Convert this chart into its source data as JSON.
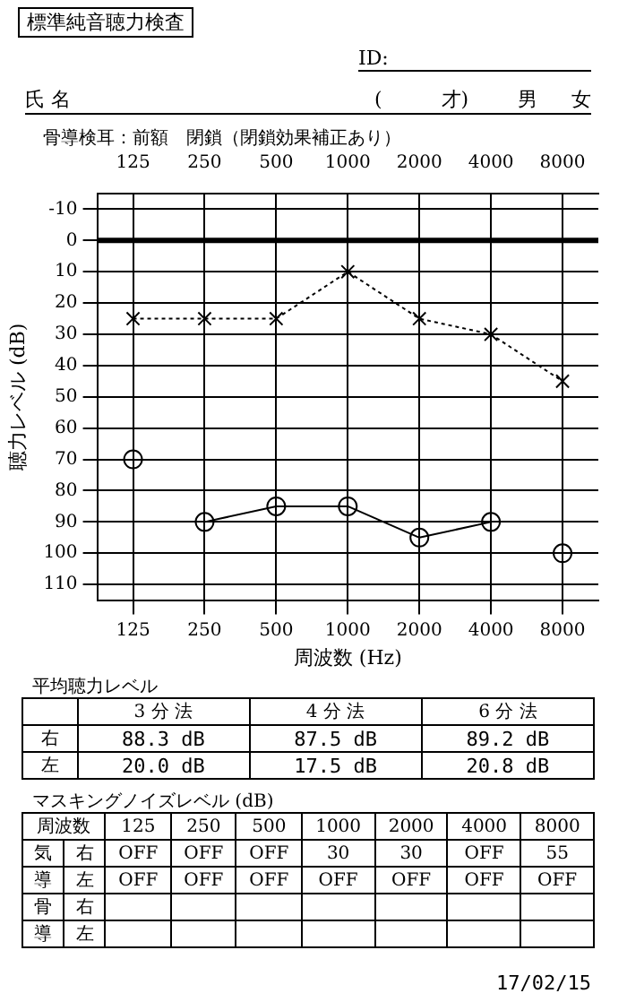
{
  "chart_data": {
    "type": "line",
    "title": "標準純音聴力検査",
    "xlabel": "周波数 (Hz)",
    "ylabel": "聴力レベル (dB)",
    "categories": [
      "125",
      "250",
      "500",
      "1000",
      "2000",
      "4000",
      "8000"
    ],
    "ylim": [
      115,
      -15
    ],
    "yticks": [
      -10,
      0,
      10,
      20,
      30,
      40,
      50,
      60,
      70,
      80,
      90,
      100,
      110
    ],
    "grid": true,
    "ref_lines": [
      {
        "axis": "y",
        "value": 0,
        "color": "#000000"
      }
    ],
    "series": [
      {
        "color": "#000000",
        "marker": "circle",
        "line_style": "solid",
        "values": [
          null,
          90,
          85,
          85,
          95,
          90,
          null
        ]
      },
      {
        "type": "scatter",
        "color": "#000000",
        "marker": "circle",
        "values": [
          70,
          null,
          null,
          null,
          null,
          null,
          100
        ]
      },
      {
        "color": "#000000",
        "marker": "cross",
        "line_style": "dotted",
        "values": [
          25,
          25,
          25,
          10,
          25,
          30,
          45
        ]
      }
    ],
    "annotations": [
      "ID:",
      "氏 名",
      "(　　　才)",
      "男",
      "女",
      "骨導検耳：前額　閉鎖（閉鎖効果補正あり）",
      "平均聴力レベル",
      "3 分 法",
      "4 分 法",
      "6 分 法",
      "右",
      "88.3 dB",
      "87.5 dB",
      "89.2 dB",
      "左",
      "20.0 dB",
      "17.5 dB",
      "20.8 dB",
      "マスキングノイズレベル (dB)",
      "周波数",
      "気",
      "右",
      "OFF",
      "OFF",
      "OFF",
      "30",
      "30",
      "OFF",
      "55",
      "導",
      "左",
      "OFF",
      "OFF",
      "OFF",
      "OFF",
      "OFF",
      "OFF",
      "OFF",
      "骨",
      "右",
      "導",
      "左",
      "17/02/15"
    ]
  }
}
